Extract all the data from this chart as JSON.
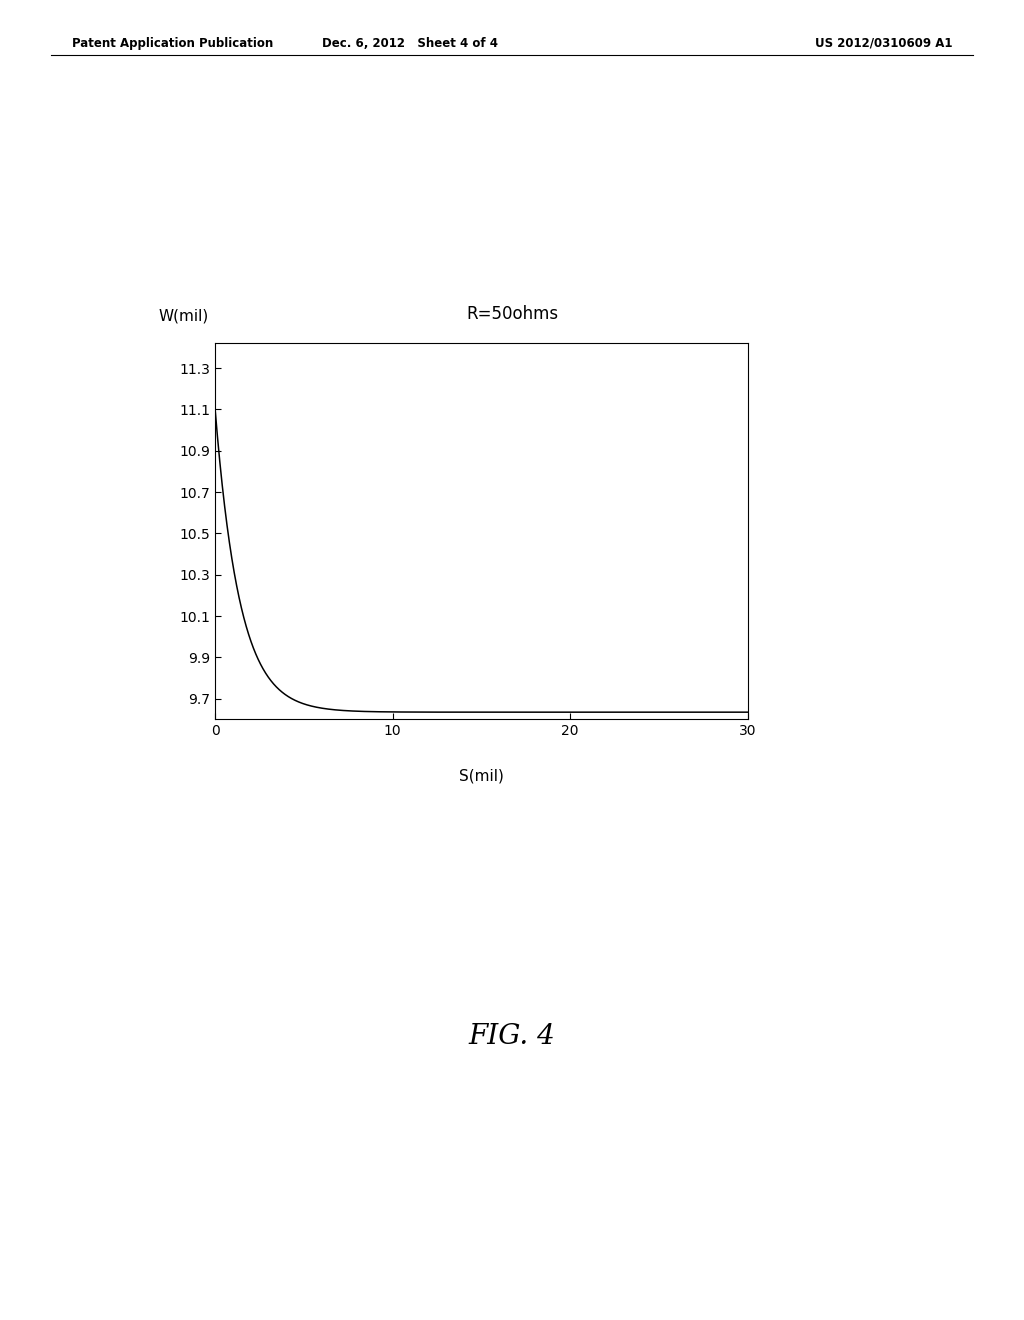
{
  "title": "R=50ohms",
  "xlabel": "S(mil)",
  "ylabel": "W(mil)",
  "xlim": [
    0,
    30
  ],
  "ylim": [
    9.6,
    11.42
  ],
  "yticks": [
    9.7,
    9.9,
    10.1,
    10.3,
    10.5,
    10.7,
    10.9,
    11.1,
    11.3
  ],
  "xticks": [
    0,
    10,
    20,
    30
  ],
  "curve_color": "#000000",
  "background_color": "#ffffff",
  "header_left": "Patent Application Publication",
  "header_mid": "Dec. 6, 2012   Sheet 4 of 4",
  "header_right": "US 2012/0310609 A1",
  "fig_label": "FIG. 4",
  "title_fontsize": 12,
  "axis_label_fontsize": 11,
  "tick_fontsize": 10,
  "header_fontsize": 8.5,
  "fig_label_fontsize": 20,
  "curve_asymptote": 9.635,
  "curve_amplitude": 1.47,
  "curve_k": 0.72
}
